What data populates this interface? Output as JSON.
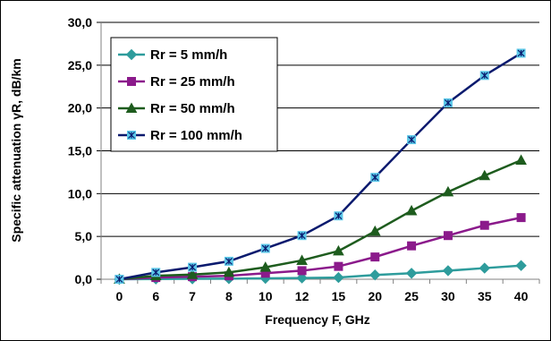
{
  "chart_data": {
    "type": "line",
    "title": "",
    "xlabel": "Frequency F, GHz",
    "ylabel": "Specific attenuation γR, dB/km",
    "categories": [
      "0",
      "6",
      "7",
      "8",
      "10",
      "12",
      "15",
      "20",
      "25",
      "30",
      "35",
      "40"
    ],
    "ylim": [
      0,
      30
    ],
    "yticks": [
      "0,0",
      "5,0",
      "10,0",
      "15,0",
      "20,0",
      "25,0",
      "30,0"
    ],
    "grid": true,
    "legend_position": "top-left",
    "series": [
      {
        "name": "Rr = 5 mm/h",
        "color": "#2E9C9C",
        "marker": "diamond",
        "values": [
          0,
          0.03,
          0.05,
          0.07,
          0.1,
          0.15,
          0.2,
          0.5,
          0.7,
          1.0,
          1.3,
          1.6
        ]
      },
      {
        "name": "Rr = 25 mm/h",
        "color": "#8B1A8B",
        "marker": "square",
        "values": [
          0,
          0.2,
          0.3,
          0.4,
          0.7,
          1.0,
          1.5,
          2.6,
          3.9,
          5.1,
          6.3,
          7.2
        ]
      },
      {
        "name": "Rr = 50 mm/h",
        "color": "#1E5C1E",
        "marker": "triangle",
        "values": [
          0,
          0.4,
          0.55,
          0.8,
          1.4,
          2.2,
          3.3,
          5.6,
          8.0,
          10.2,
          12.1,
          13.9
        ]
      },
      {
        "name": "Rr = 100 mm/h",
        "color": "#0A1A6E",
        "marker": "asterisk-square",
        "marker_fill": "#5BC8E8",
        "values": [
          0,
          0.8,
          1.4,
          2.1,
          3.6,
          5.1,
          7.4,
          11.9,
          16.3,
          20.6,
          23.8,
          26.4
        ]
      }
    ]
  }
}
